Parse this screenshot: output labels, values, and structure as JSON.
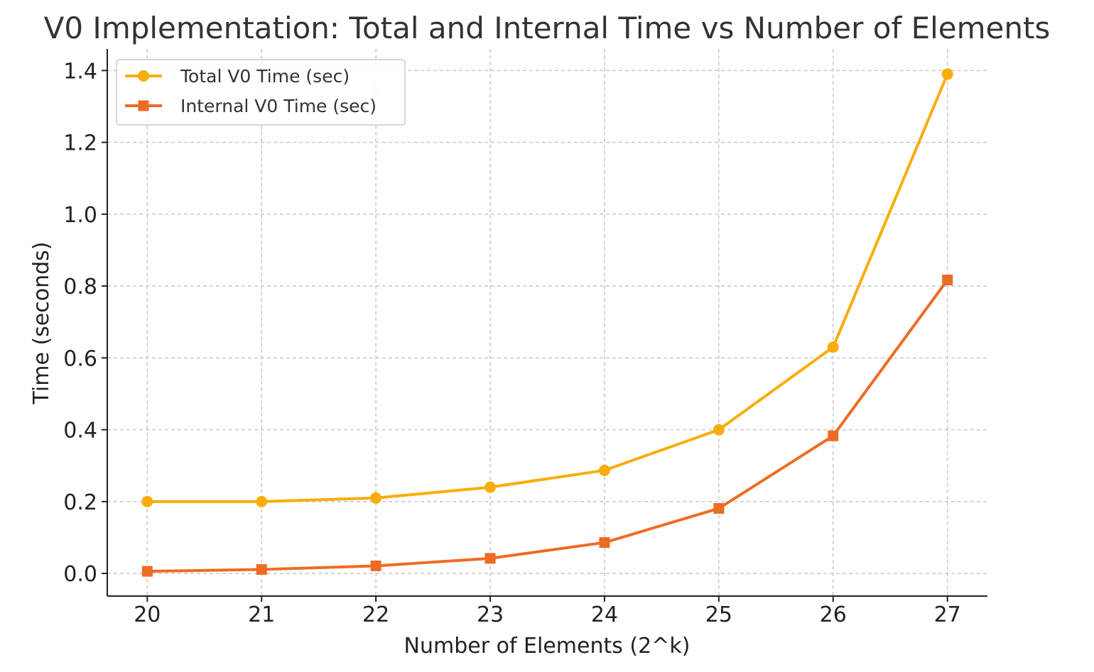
{
  "chart_data": {
    "type": "line",
    "title": "V0 Implementation: Total and Internal Time vs Number of Elements",
    "xlabel": "Number of Elements (2^k)",
    "ylabel": "Time (seconds)",
    "x": [
      20,
      21,
      22,
      23,
      24,
      25,
      26,
      27
    ],
    "x_tick_labels": [
      "20",
      "21",
      "22",
      "23",
      "24",
      "25",
      "26",
      "27"
    ],
    "y_ticks": [
      0.0,
      0.2,
      0.4,
      0.6,
      0.8,
      1.0,
      1.2,
      1.4
    ],
    "y_tick_labels": [
      "0.0",
      "0.2",
      "0.4",
      "0.6",
      "0.8",
      "1.0",
      "1.2",
      "1.4"
    ],
    "xlim": [
      19.65,
      27.35
    ],
    "ylim": [
      -0.063,
      1.46
    ],
    "grid": true,
    "legend_position": "top-left",
    "series": [
      {
        "name": "Total V0 Time (sec)",
        "marker": "circle",
        "color": "#F9AD0A",
        "values": [
          0.2,
          0.2,
          0.21,
          0.24,
          0.287,
          0.4,
          0.63,
          1.39
        ]
      },
      {
        "name": "Internal V0 Time (sec)",
        "marker": "square",
        "color": "#EE6B24",
        "values": [
          0.006,
          0.011,
          0.021,
          0.042,
          0.086,
          0.181,
          0.383,
          0.817
        ]
      }
    ]
  }
}
